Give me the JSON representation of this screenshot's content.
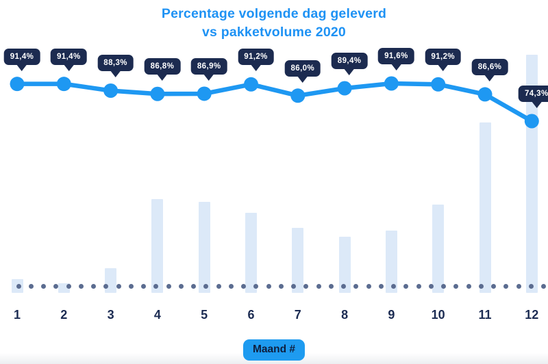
{
  "title": {
    "line1": "Percentage volgende dag geleverd",
    "line2": "vs pakketvolume 2020"
  },
  "x_axis": {
    "tick_labels": [
      "1",
      "2",
      "3",
      "4",
      "5",
      "6",
      "7",
      "8",
      "9",
      "10",
      "11",
      "12"
    ],
    "badge_label": "Maand #"
  },
  "chart_data": {
    "type": "line",
    "title": "Percentage volgende dag geleverd vs pakketvolume 2020",
    "categories": [
      1,
      2,
      3,
      4,
      5,
      6,
      7,
      8,
      9,
      10,
      11,
      12
    ],
    "xlabel": "Maand #",
    "ylabel": "",
    "legend_position": "none",
    "grid": "off",
    "series": [
      {
        "name": "Percentage volgende dag geleverd",
        "type": "line",
        "unit": "%",
        "values": [
          91.4,
          91.4,
          88.3,
          86.8,
          86.9,
          91.2,
          86.0,
          89.4,
          91.6,
          91.2,
          86.6,
          74.3
        ],
        "point_labels": [
          "91,4%",
          "91,4%",
          "88,3%",
          "86,8%",
          "86,9%",
          "91,2%",
          "86,0%",
          "89,4%",
          "91,6%",
          "91,2%",
          "86,6%",
          "74,3%"
        ],
        "value_range_shown": [
          74.3,
          91.6
        ]
      },
      {
        "name": "Pakketvolume 2020",
        "type": "bar",
        "values_relative_pct_of_max": [
          5.7,
          4.0,
          10.3,
          39.4,
          38.2,
          33.6,
          27.3,
          23.6,
          26.1,
          37.1,
          71.6,
          100
        ]
      }
    ]
  },
  "colors": {
    "background": "#FFFFFF",
    "title_blue": "#1E92F4",
    "line_blue": "#1E98F2",
    "bubble_navy": "#1C2B50",
    "bubble_text": "#FFFFFF",
    "bar_fill": "#DCE9F8",
    "baseline_dot": "#5B6C90",
    "tick_label_navy": "#1B2B52",
    "badge_bg": "#1E9BF0",
    "badge_text": "#0F1F3E"
  }
}
